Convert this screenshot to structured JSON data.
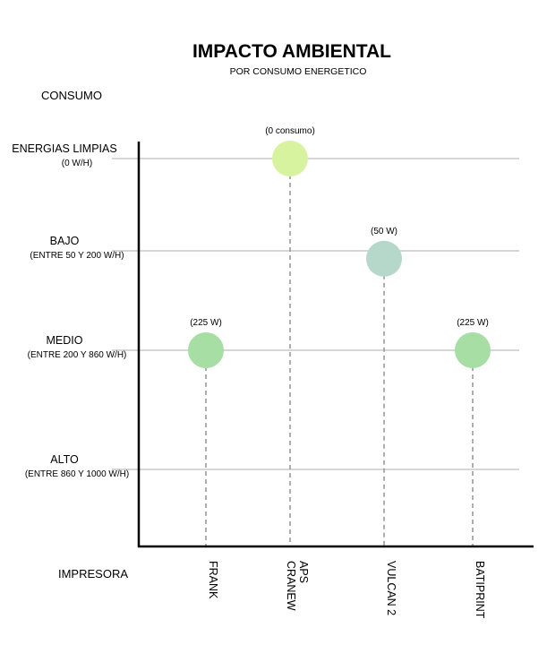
{
  "chart_data": {
    "type": "scatter",
    "title": "IMPACTO AMBIENTAL",
    "subtitle": "POR CONSUMO ENERGETICO",
    "ylabel": "CONSUMO",
    "xlabel": "IMPRESORA",
    "y_categories": [
      {
        "label": "ENERGIAS LIMPIAS",
        "sub": "(0 W/H)"
      },
      {
        "label": "BAJO",
        "sub": "(ENTRE 50 Y 200 W/H)"
      },
      {
        "label": "MEDIO",
        "sub": "(ENTRE 200 Y 860 W/H)"
      },
      {
        "label": "ALTO",
        "sub": "(ENTRE 860 Y 1000 W/H)"
      }
    ],
    "points": [
      {
        "x": "FRANK",
        "x_lines": [
          "FRANK"
        ],
        "level": 2,
        "offset": 0,
        "label": "(225 W)",
        "color": "#a6dea4"
      },
      {
        "x": "CRANEW APS",
        "x_lines": [
          "CRANEW",
          "APS"
        ],
        "level": 0,
        "offset": 0,
        "label": "(0 consumo)",
        "color": "#d8f3a0"
      },
      {
        "x": "VULCAN 2",
        "x_lines": [
          "VULCAN 2"
        ],
        "level": 1,
        "offset": 0.08,
        "label": "(50 W)",
        "color": "#b6d8cb"
      },
      {
        "x": "BATIPRINT",
        "x_lines": [
          "BATIPRINT"
        ],
        "level": 2,
        "offset": 0,
        "label": "(225 W)",
        "color": "#a6dea4"
      }
    ],
    "colors": {
      "axis": "#000000",
      "gridline": "#bdbdbd",
      "dropline": "#9a9a9a"
    }
  }
}
